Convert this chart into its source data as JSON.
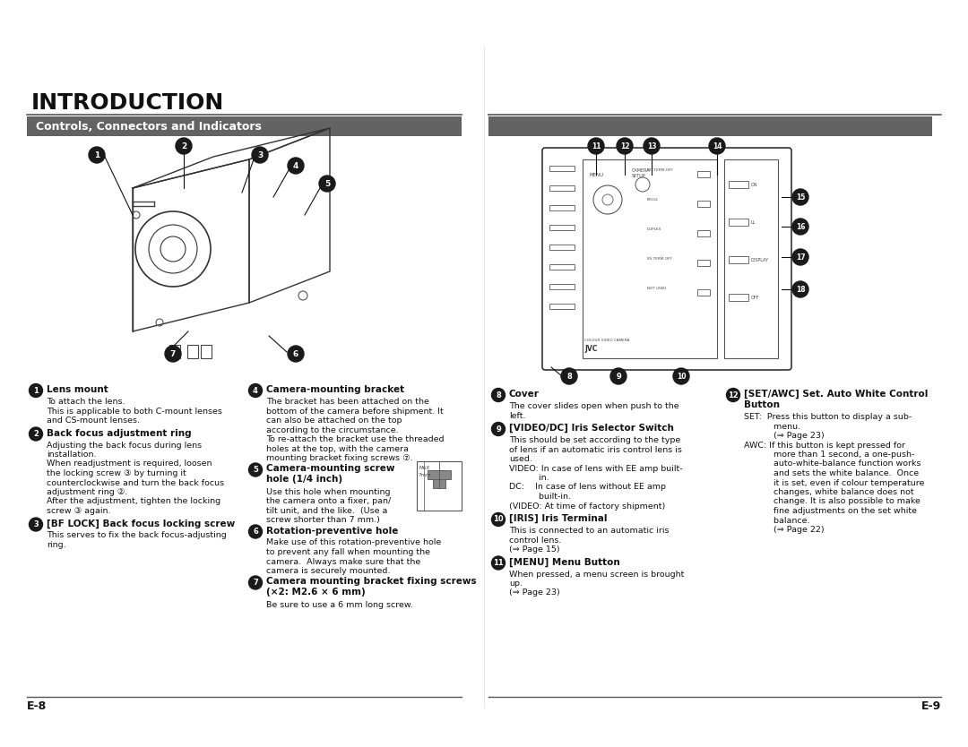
{
  "title": "INTRODUCTION",
  "section_header": "Controls, Connectors and Indicators",
  "section_header_bg": "#636363",
  "section_header_color": "#ffffff",
  "background_color": "#ffffff",
  "text_color": "#111111",
  "page_left": "E-8",
  "page_right": "E-9",
  "bullet_color": "#1a1a1a",
  "line_color": "#333333",
  "left_items": [
    {
      "num": "1",
      "title": "Lens mount",
      "body": "To attach the lens.\nThis is applicable to both C-mount lenses\nand CS-mount lenses."
    },
    {
      "num": "2",
      "title": "Back focus adjustment ring",
      "body": "Adjusting the back focus during lens\ninstallation.\nWhen readjustment is required, loosen\nthe locking screw ③ by turning it\ncounterclockwise and turn the back focus\nadjustment ring ②.\nAfter the adjustment, tighten the locking\nscrew ③ again."
    },
    {
      "num": "3",
      "title": "[BF LOCK] Back focus locking screw",
      "body": "This serves to fix the back focus-adjusting\nring."
    }
  ],
  "right_items_col1": [
    {
      "num": "4",
      "title": "Camera-mounting bracket",
      "body": "The bracket has been attached on the\nbottom of the camera before shipment. It\ncan also be attached on the top\naccording to the circumstance.\nTo re-attach the bracket use the threaded\nholes at the top, with the camera\nmounting bracket fixing screws ⑦."
    },
    {
      "num": "5",
      "title": "Camera-mounting screw\nhole (1/4 inch)",
      "body": "Use this hole when mounting\nthe camera onto a fixer, pan/\ntilt unit, and the like.  (Use a\nscrew shorter than 7 mm.)"
    },
    {
      "num": "6",
      "title": "Rotation-preventive hole",
      "body": "Make use of this rotation-preventive hole\nto prevent any fall when mounting the\ncamera.  Always make sure that the\ncamera is securely mounted."
    },
    {
      "num": "7",
      "title": "Camera mounting bracket fixing screws\n(×2: M2.6 × 6 mm)",
      "body": "Be sure to use a 6 mm long screw."
    }
  ],
  "page2_items_col1": [
    {
      "num": "8",
      "title": "Cover",
      "body": "The cover slides open when push to the\nleft."
    },
    {
      "num": "9",
      "title": "[VIDEO/DC] Iris Selector Switch",
      "body": "This should be set according to the type\nof lens if an automatic iris control lens is\nused.\nVIDEO: In case of lens with EE amp built-\n           in.\nDC:    In case of lens without EE amp\n           built-in.\n(VIDEO: At time of factory shipment)"
    },
    {
      "num": "10",
      "title": "[IRIS] Iris Terminal",
      "body": "This is connected to an automatic iris\ncontrol lens.\n(⇒ Page 15)"
    },
    {
      "num": "11",
      "title": "[MENU] Menu Button",
      "body": "When pressed, a menu screen is brought\nup.\n(⇒ Page 23)"
    }
  ],
  "page2_items_col2": [
    {
      "num": "12",
      "title": "[SET/AWC] Set. Auto White Control\nButton",
      "body": "SET:  Press this button to display a sub-\n           menu.\n           (⇒ Page 23)\nAWC: If this button is kept pressed for\n           more than 1 second, a one-push-\n           auto-white-balance function works\n           and sets the white balance.  Once\n           it is set, even if colour temperature\n           changes, white balance does not\n           change. It is also possible to make\n           fine adjustments on the set white\n           balance.\n           (⇒ Page 22)"
    }
  ]
}
